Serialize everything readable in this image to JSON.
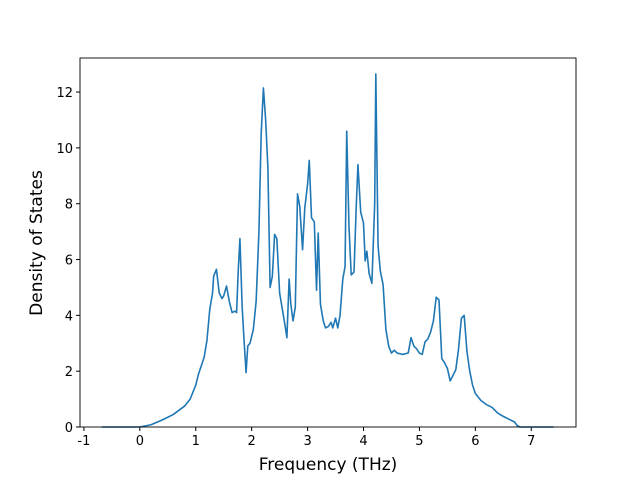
{
  "chart_data": {
    "type": "line",
    "xlabel": "Frequency (THz)",
    "ylabel": "Density of States",
    "x": [
      -0.68,
      0,
      0.2,
      0.4,
      0.6,
      0.8,
      0.9,
      1.0,
      1.05,
      1.15,
      1.2,
      1.25,
      1.3,
      1.32,
      1.37,
      1.42,
      1.47,
      1.5,
      1.55,
      1.6,
      1.65,
      1.7,
      1.73,
      1.76,
      1.79,
      1.83,
      1.87,
      1.9,
      1.93,
      1.97,
      2.03,
      2.08,
      2.13,
      2.17,
      2.21,
      2.25,
      2.29,
      2.33,
      2.37,
      2.41,
      2.45,
      2.5,
      2.55,
      2.6,
      2.63,
      2.67,
      2.7,
      2.74,
      2.78,
      2.82,
      2.86,
      2.91,
      2.95,
      3.0,
      3.03,
      3.07,
      3.12,
      3.16,
      3.19,
      3.23,
      3.28,
      3.32,
      3.37,
      3.42,
      3.45,
      3.5,
      3.54,
      3.58,
      3.63,
      3.67,
      3.7,
      3.74,
      3.78,
      3.83,
      3.87,
      3.9,
      3.95,
      4.0,
      4.03,
      4.06,
      4.1,
      4.15,
      4.2,
      4.22,
      4.26,
      4.3,
      4.35,
      4.4,
      4.45,
      4.5,
      4.55,
      4.6,
      4.7,
      4.8,
      4.85,
      4.9,
      4.95,
      5.0,
      5.05,
      5.1,
      5.15,
      5.2,
      5.25,
      5.3,
      5.35,
      5.4,
      5.45,
      5.5,
      5.55,
      5.6,
      5.65,
      5.7,
      5.75,
      5.8,
      5.85,
      5.9,
      5.95,
      6.0,
      6.1,
      6.2,
      6.3,
      6.4,
      6.5,
      6.6,
      6.7,
      6.75,
      6.8,
      7.4
    ],
    "series": [
      {
        "color": "#1f77b4",
        "values": [
          0,
          0,
          0.08,
          0.25,
          0.45,
          0.75,
          1.0,
          1.5,
          1.9,
          2.5,
          3.1,
          4.2,
          4.8,
          5.4,
          5.65,
          4.8,
          4.6,
          4.7,
          5.05,
          4.5,
          4.1,
          4.15,
          4.1,
          5.6,
          6.75,
          4.3,
          2.9,
          1.95,
          2.9,
          3.0,
          3.5,
          4.5,
          7.0,
          10.5,
          12.15,
          11.0,
          9.3,
          5.0,
          5.4,
          6.9,
          6.75,
          4.8,
          4.2,
          3.6,
          3.2,
          5.3,
          4.4,
          3.8,
          4.3,
          8.35,
          7.9,
          6.35,
          7.85,
          8.7,
          9.55,
          7.5,
          7.35,
          4.9,
          6.95,
          4.4,
          3.8,
          3.55,
          3.6,
          3.75,
          3.55,
          3.9,
          3.55,
          4.0,
          5.3,
          5.75,
          10.6,
          7.2,
          5.45,
          5.55,
          7.9,
          9.4,
          7.7,
          7.3,
          5.95,
          6.3,
          5.5,
          5.15,
          8.0,
          12.65,
          6.5,
          5.6,
          5.1,
          3.5,
          2.9,
          2.65,
          2.75,
          2.65,
          2.6,
          2.65,
          3.2,
          2.9,
          2.8,
          2.65,
          2.6,
          3.05,
          3.15,
          3.4,
          3.8,
          4.65,
          4.55,
          2.45,
          2.3,
          2.1,
          1.65,
          1.85,
          2.05,
          2.8,
          3.9,
          4.0,
          2.7,
          2.0,
          1.5,
          1.2,
          0.95,
          0.8,
          0.7,
          0.5,
          0.38,
          0.28,
          0.18,
          0.05,
          0,
          0
        ]
      }
    ],
    "xlim": [
      -1.07,
      7.8
    ],
    "xticks": [
      -1,
      0,
      1,
      2,
      3,
      4,
      5,
      6,
      7
    ],
    "ylim": [
      0,
      13.22
    ],
    "yticks": [
      0,
      2,
      4,
      6,
      8,
      10,
      12
    ]
  }
}
